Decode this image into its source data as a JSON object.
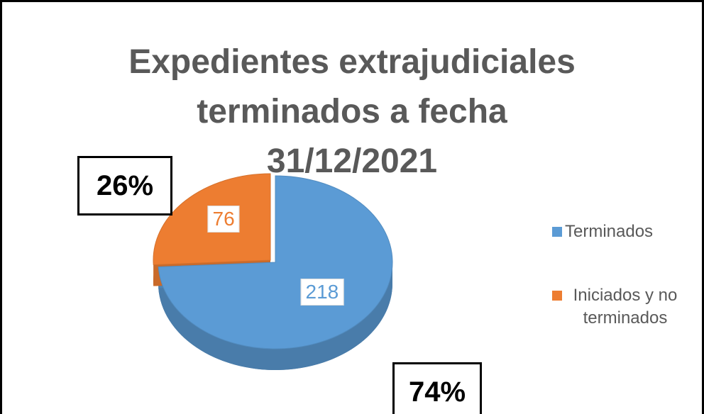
{
  "chart_data": {
    "type": "pie",
    "title": "Expedientes extrajudiciales terminados a fecha 31/12/2021",
    "series": [
      {
        "name": "Terminados",
        "color": "#5b9bd5",
        "values": [
          218
        ],
        "explode": false
      },
      {
        "name": "Iniciados y no terminados",
        "color": "#ed7d31",
        "values": [
          76
        ],
        "explode": true
      }
    ],
    "annotations": [
      "26%",
      "74%"
    ],
    "legend": "right"
  }
}
